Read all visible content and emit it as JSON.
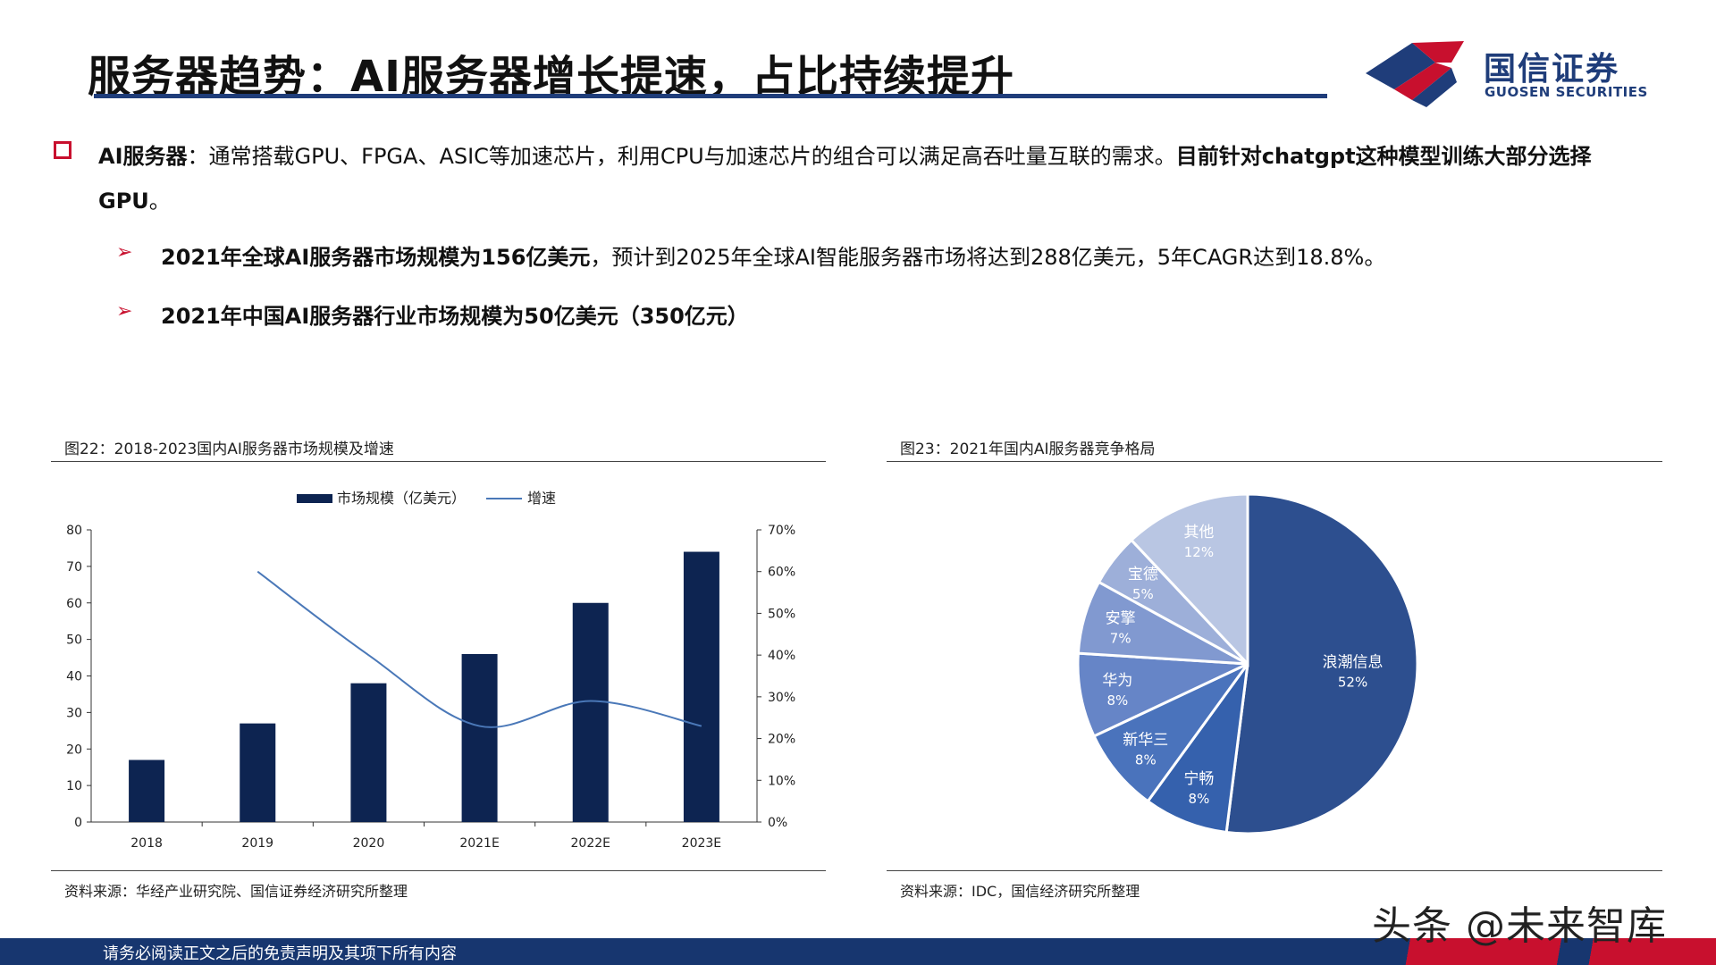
{
  "title": "服务器趋势：AI服务器增长提速，占比持续提升",
  "logo": {
    "name": "国信证券",
    "sub": "GUOSEN SECURITIES"
  },
  "main": {
    "lead_bold": "AI服务器",
    "lead_text": "：通常搭载GPU、FPGA、ASIC等加速芯片，利用CPU与加速芯片的组合可以满足高吞吐量互联的需求。",
    "tail_bold": "目前针对chatgpt这种模型训练大部分选择GPU",
    "tail_end": "。"
  },
  "points": [
    {
      "bold": "2021年全球AI服务器市场规模为156亿美元",
      "text": "，预计到2025年全球AI智能服务器市场将达到288亿美元，5年CAGR达到18.8%。"
    },
    {
      "bold": "2021年中国AI服务器行业市场规模为50亿美元（350亿元）",
      "text": ""
    }
  ],
  "figure_left": {
    "title": "图22：2018-2023国内AI服务器市场规模及增速",
    "source": "资料来源：华经产业研究院、国信证券经济研究所整理"
  },
  "figure_right": {
    "title": "图23：2021年国内AI服务器竞争格局",
    "source": "资料来源：IDC，国信经济研究所整理"
  },
  "footer": "请务必阅读正文之后的免责声明及其项下所有内容",
  "watermark": "头条 @未来智库",
  "colors": {
    "navy": "#0d2451",
    "line": "#4a78b8",
    "red": "#c8102e",
    "title_rule": "#1f3d7a"
  },
  "chart_data": [
    {
      "type": "bar",
      "categories": [
        "2018",
        "2019",
        "2020",
        "2021E",
        "2022E",
        "2023E"
      ],
      "series": [
        {
          "name": "市场规模（亿美元）",
          "type": "bar",
          "axis": "left",
          "values": [
            17,
            27,
            38,
            46,
            60,
            74
          ]
        },
        {
          "name": "增速",
          "type": "line",
          "axis": "right",
          "values": [
            null,
            0.6,
            0.4,
            0.23,
            0.29,
            0.23
          ]
        }
      ],
      "y_left": {
        "min": 0,
        "max": 80,
        "ticks": [
          "0",
          "10",
          "20",
          "30",
          "40",
          "50",
          "60",
          "70",
          "80"
        ]
      },
      "y_right": {
        "min": 0,
        "max": 0.7,
        "ticks": [
          "0%",
          "10%",
          "20%",
          "30%",
          "40%",
          "50%",
          "60%",
          "70%"
        ]
      },
      "legend": "top"
    },
    {
      "type": "pie",
      "slices": [
        {
          "label": "浪潮信息",
          "pct": "52%",
          "value": 52,
          "color": "#2d4f8f"
        },
        {
          "label": "宁畅",
          "pct": "8%",
          "value": 8,
          "color": "#3561ad"
        },
        {
          "label": "新华三",
          "pct": "8%",
          "value": 8,
          "color": "#4a73bc"
        },
        {
          "label": "华为",
          "pct": "8%",
          "value": 8,
          "color": "#6685c7"
        },
        {
          "label": "安擎",
          "pct": "7%",
          "value": 7,
          "color": "#8199d0"
        },
        {
          "label": "宝德",
          "pct": "5%",
          "value": 5,
          "color": "#9dafd9"
        },
        {
          "label": "其他",
          "pct": "12%",
          "value": 12,
          "color": "#b9c6e3"
        }
      ]
    }
  ]
}
